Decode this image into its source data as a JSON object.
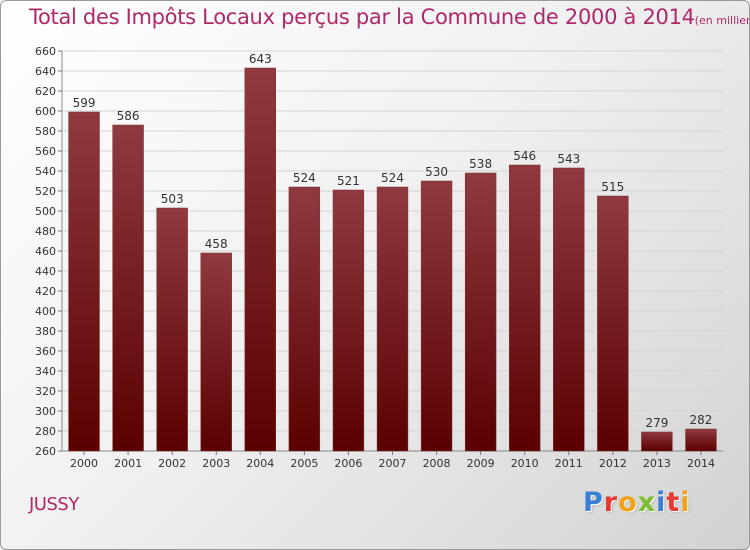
{
  "title": {
    "main": "Total des Impôts Locaux perçus par la Commune de 2000 à 2014",
    "unit": "(en milliers d'€)"
  },
  "commune": "JUSSY",
  "logo": {
    "letters": [
      "P",
      "r",
      "o",
      "x",
      "i",
      "t",
      "i"
    ],
    "colors": [
      "#3a7fd5",
      "#e8372c",
      "#f0a21a",
      "#7dbe2f",
      "#3a7fd5",
      "#e8372c",
      "#f0a21a"
    ]
  },
  "colors": {
    "bar_top": "#8e3a40",
    "bar_bottom": "#5a0000",
    "title": "#b0286a",
    "grid": "#d4d4d4"
  },
  "chart_data": {
    "type": "bar",
    "title": "Total des Impôts Locaux perçus par la Commune de 2000 à 2014",
    "xlabel": "",
    "ylabel": "",
    "categories": [
      "2000",
      "2001",
      "2002",
      "2003",
      "2004",
      "2005",
      "2006",
      "2007",
      "2008",
      "2009",
      "2010",
      "2011",
      "2012",
      "2013",
      "2014"
    ],
    "values": [
      599,
      586,
      503,
      458,
      643,
      524,
      521,
      524,
      530,
      538,
      546,
      543,
      515,
      279,
      282
    ],
    "ylim": [
      260,
      660
    ],
    "ytick_step": 20,
    "grid": true
  }
}
